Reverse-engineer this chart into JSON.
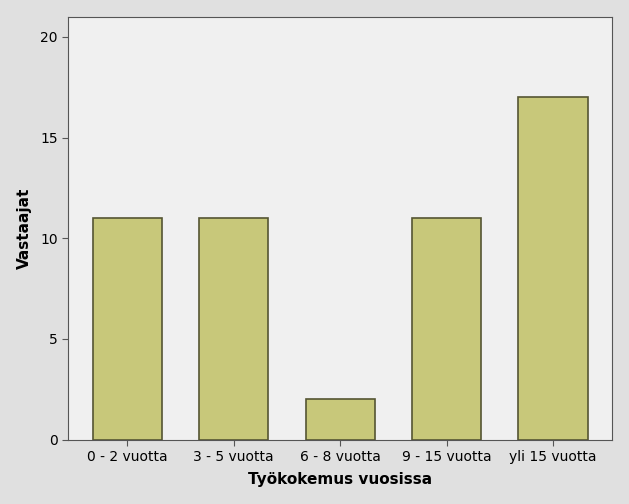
{
  "categories": [
    "0 - 2 vuotta",
    "3 - 5 vuotta",
    "6 - 8 vuotta",
    "9 - 15 vuotta",
    "yli 15 vuotta"
  ],
  "values": [
    11,
    11,
    2,
    11,
    17
  ],
  "bar_color": "#c8c87a",
  "bar_edgecolor": "#555533",
  "xlabel": "Työkokemus vuosissa",
  "ylabel": "Vastaajat",
  "ylim": [
    0,
    21
  ],
  "yticks": [
    0,
    5,
    10,
    15,
    20
  ],
  "figure_bg_color": "#e0e0e0",
  "axes_bg_color": "#f0f0f0",
  "xlabel_fontsize": 11,
  "ylabel_fontsize": 11,
  "tick_fontsize": 10,
  "bar_width": 0.65
}
